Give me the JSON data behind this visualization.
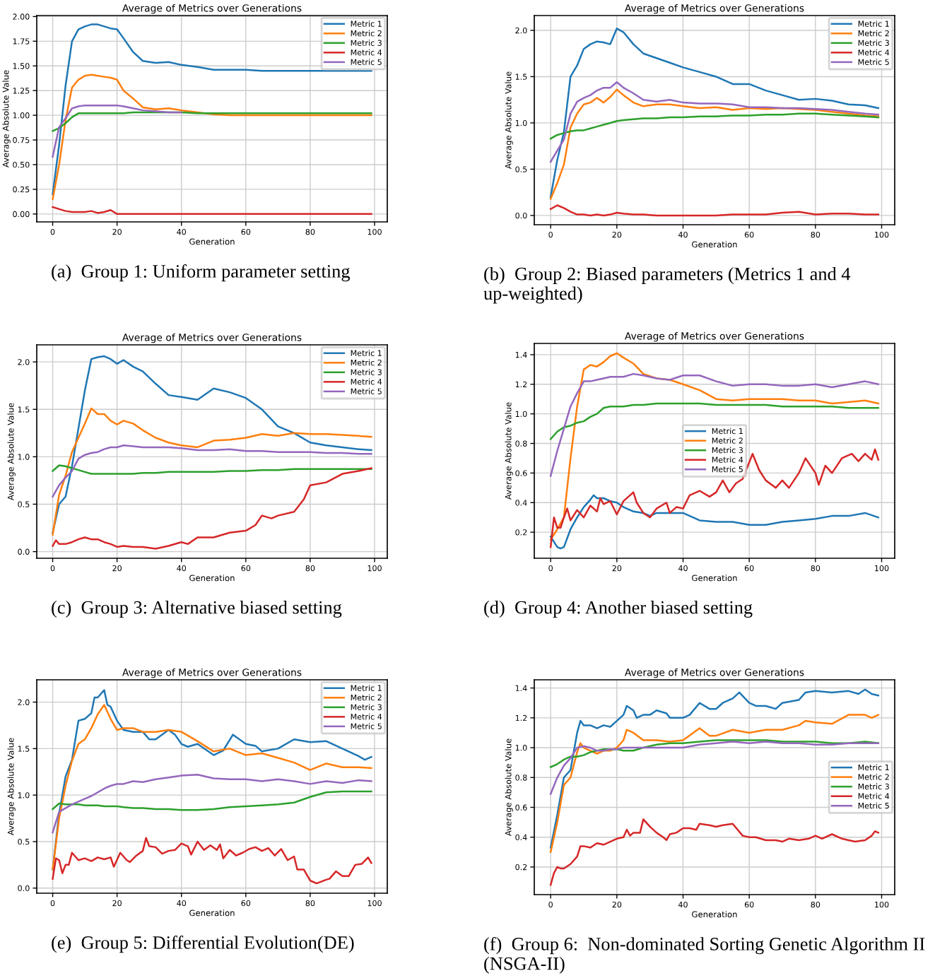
{
  "chart_data": [
    {
      "type": "line",
      "title": "Average of Metrics over Generations",
      "xlabel": "Generation",
      "ylabel": "Average Absolute Value",
      "annotations": [
        "(a)  Group 1: Uniform parameter setting"
      ],
      "legend": "top right",
      "grid": true,
      "x": [
        0,
        2,
        4,
        6,
        8,
        10,
        12,
        14,
        16,
        18,
        20,
        22,
        25,
        28,
        32,
        36,
        40,
        45,
        50,
        55,
        60,
        65,
        70,
        75,
        80,
        85,
        90,
        95,
        99
      ],
      "xlim": [
        -4.95,
        103.95
      ],
      "xticks": [
        0,
        20,
        40,
        60,
        80,
        100
      ],
      "ylim": [
        -0.08,
        2.01
      ],
      "yticks": [
        {
          "value": 0,
          "label": "0.00"
        },
        {
          "value": 0.25,
          "label": "0.25"
        },
        {
          "value": 0.5,
          "label": "0.50"
        },
        {
          "value": 0.75,
          "label": "0.75"
        },
        {
          "value": 1,
          "label": "1.00"
        },
        {
          "value": 1.25,
          "label": "1.25"
        },
        {
          "value": 1.5,
          "label": "1.50"
        },
        {
          "value": 1.75,
          "label": "1.75"
        },
        {
          "value": 2,
          "label": "2.00"
        }
      ],
      "series": [
        {
          "name": "Metric 1",
          "color": "#1f77b4",
          "values": [
            0.2,
            0.7,
            1.3,
            1.75,
            1.87,
            1.9,
            1.92,
            1.92,
            1.9,
            1.88,
            1.87,
            1.78,
            1.64,
            1.55,
            1.53,
            1.54,
            1.51,
            1.49,
            1.46,
            1.46,
            1.46,
            1.45,
            1.45,
            1.45,
            1.45,
            1.45,
            1.45,
            1.45,
            1.45
          ]
        },
        {
          "name": "Metric 2",
          "color": "#ff7f0e",
          "values": [
            0.15,
            0.5,
            0.95,
            1.28,
            1.36,
            1.4,
            1.41,
            1.4,
            1.39,
            1.38,
            1.36,
            1.25,
            1.17,
            1.08,
            1.06,
            1.07,
            1.05,
            1.03,
            1.01,
            1.0,
            1.0,
            1.0,
            1.0,
            1.0,
            1.0,
            1.0,
            1.0,
            1.0,
            1.0
          ]
        },
        {
          "name": "Metric 3",
          "color": "#2ca02c",
          "values": [
            0.84,
            0.87,
            0.92,
            0.98,
            1.02,
            1.02,
            1.02,
            1.02,
            1.02,
            1.02,
            1.02,
            1.02,
            1.03,
            1.03,
            1.03,
            1.03,
            1.03,
            1.02,
            1.02,
            1.02,
            1.02,
            1.02,
            1.02,
            1.02,
            1.02,
            1.02,
            1.02,
            1.02,
            1.02
          ]
        },
        {
          "name": "Metric 4",
          "color": "#d62728",
          "values": [
            0.07,
            0.05,
            0.03,
            0.02,
            0.02,
            0.02,
            0.03,
            0.01,
            0.02,
            0.04,
            0,
            0,
            0,
            0,
            0,
            0,
            0,
            0,
            0,
            0,
            0,
            0,
            0,
            0,
            0,
            0,
            0,
            0,
            0
          ]
        },
        {
          "name": "Metric 5",
          "color": "#9467bd",
          "values": [
            0.58,
            0.88,
            0.97,
            1.07,
            1.09,
            1.1,
            1.1,
            1.1,
            1.1,
            1.1,
            1.1,
            1.09,
            1.07,
            1.05,
            1.04,
            1.03,
            1.03,
            null,
            null,
            null,
            null,
            null,
            null,
            null,
            null,
            null,
            null,
            null,
            null
          ]
        }
      ]
    },
    {
      "type": "line",
      "title": "Average of Metrics over Generations",
      "xlabel": "Generation",
      "ylabel": "Average Absolute Value",
      "annotations": [
        "(b)  Group 2: Biased parameters (Metrics 1 and 4 up-weighted)"
      ],
      "legend": "top right",
      "grid": true,
      "x": [
        0,
        2,
        4,
        6,
        8,
        10,
        12,
        14,
        16,
        18,
        20,
        22,
        25,
        28,
        32,
        36,
        40,
        45,
        50,
        55,
        60,
        65,
        70,
        75,
        80,
        85,
        90,
        95,
        99
      ],
      "xlim": [
        -4.95,
        103.95
      ],
      "xticks": [
        0,
        20,
        40,
        60,
        80,
        100
      ],
      "ylim": [
        -0.1,
        2.16
      ],
      "yticks": [
        {
          "value": 0,
          "label": "0.0"
        },
        {
          "value": 0.5,
          "label": "0.5"
        },
        {
          "value": 1,
          "label": "1.0"
        },
        {
          "value": 1.5,
          "label": "1.5"
        },
        {
          "value": 2,
          "label": "2.0"
        }
      ],
      "series": [
        {
          "name": "Metric 1",
          "color": "#1f77b4",
          "values": [
            0.2,
            0.6,
            0.9,
            1.5,
            1.62,
            1.8,
            1.85,
            1.88,
            1.87,
            1.85,
            2.02,
            1.98,
            1.85,
            1.75,
            1.7,
            1.65,
            1.6,
            1.55,
            1.5,
            1.42,
            1.42,
            1.35,
            1.3,
            1.25,
            1.26,
            1.24,
            1.2,
            1.19,
            1.16
          ]
        },
        {
          "name": "Metric 2",
          "color": "#ff7f0e",
          "values": [
            0.18,
            0.35,
            0.55,
            0.95,
            1.1,
            1.2,
            1.22,
            1.27,
            1.22,
            1.28,
            1.36,
            1.3,
            1.22,
            1.18,
            1.2,
            1.2,
            1.18,
            1.16,
            1.17,
            1.14,
            1.16,
            1.15,
            1.16,
            1.15,
            1.14,
            1.12,
            1.1,
            1.08,
            1.07
          ]
        },
        {
          "name": "Metric 3",
          "color": "#2ca02c",
          "values": [
            0.83,
            0.87,
            0.89,
            0.91,
            0.92,
            0.92,
            0.94,
            0.96,
            0.98,
            1.0,
            1.02,
            1.03,
            1.04,
            1.05,
            1.05,
            1.06,
            1.06,
            1.07,
            1.07,
            1.08,
            1.08,
            1.09,
            1.09,
            1.1,
            1.1,
            1.09,
            1.08,
            1.07,
            1.06
          ]
        },
        {
          "name": "Metric 4",
          "color": "#d62728",
          "values": [
            0.07,
            0.11,
            0.08,
            0.04,
            0.01,
            0.01,
            0.0,
            0.01,
            0.0,
            0.01,
            0.03,
            0.02,
            0.01,
            0.01,
            0.0,
            0.0,
            0.0,
            0.0,
            0.0,
            0.01,
            0.01,
            0.01,
            0.03,
            0.04,
            0.01,
            0.02,
            0.02,
            0.01,
            0.01
          ]
        },
        {
          "name": "Metric 5",
          "color": "#9467bd",
          "values": [
            0.58,
            0.7,
            0.82,
            1.1,
            1.23,
            1.27,
            1.3,
            1.35,
            1.38,
            1.38,
            1.44,
            1.38,
            1.32,
            1.25,
            1.23,
            1.25,
            1.22,
            1.21,
            1.21,
            1.2,
            1.17,
            1.17,
            1.16,
            1.16,
            1.15,
            1.14,
            1.12,
            1.1,
            1.09
          ]
        }
      ]
    },
    {
      "type": "line",
      "title": "Average of Metrics over Generations",
      "xlabel": "Generation",
      "ylabel": "Average Absolute Value",
      "annotations": [
        "(c)  Group 3: Alternative biased setting"
      ],
      "legend": "top right",
      "grid": true,
      "x": [
        0,
        2,
        4,
        6,
        8,
        10,
        12,
        14,
        16,
        18,
        20,
        22,
        25,
        28,
        32,
        36,
        40,
        45,
        50,
        55,
        60,
        65,
        70,
        75,
        80,
        85,
        90,
        95,
        99
      ],
      "xlim": [
        -4.95,
        103.95
      ],
      "xticks": [
        0,
        20,
        40,
        60,
        80,
        100
      ],
      "ylim": [
        -0.07,
        2.18
      ],
      "yticks": [
        {
          "value": 0,
          "label": "0.0"
        },
        {
          "value": 0.5,
          "label": "0.5"
        },
        {
          "value": 1,
          "label": "1.0"
        },
        {
          "value": 1.5,
          "label": "1.5"
        },
        {
          "value": 2,
          "label": "2.0"
        }
      ],
      "series": [
        {
          "name": "Metric 1",
          "color": "#1f77b4",
          "values": [
            0.2,
            0.5,
            0.58,
            0.9,
            1.3,
            1.7,
            2.03,
            2.05,
            2.06,
            2.03,
            1.98,
            2.02,
            1.95,
            1.9,
            1.77,
            1.65,
            1.63,
            1.6,
            1.72,
            1.68,
            1.62,
            1.5,
            1.32,
            1.25,
            1.15,
            1.12,
            1.1,
            1.08,
            1.07
          ]
        },
        {
          "name": "Metric 2",
          "color": "#ff7f0e",
          "values": [
            0.18,
            0.6,
            0.8,
            1.05,
            1.2,
            1.35,
            1.51,
            1.45,
            1.45,
            1.38,
            1.34,
            1.38,
            1.35,
            1.28,
            1.2,
            1.15,
            1.12,
            1.1,
            1.17,
            1.18,
            1.2,
            1.24,
            1.22,
            1.25,
            1.24,
            1.24,
            1.23,
            1.22,
            1.21
          ]
        },
        {
          "name": "Metric 3",
          "color": "#2ca02c",
          "values": [
            0.85,
            0.91,
            0.9,
            0.88,
            0.86,
            0.84,
            0.82,
            0.82,
            0.82,
            0.82,
            0.82,
            0.82,
            0.82,
            0.83,
            0.83,
            0.84,
            0.84,
            0.84,
            0.84,
            0.85,
            0.85,
            0.86,
            0.86,
            0.87,
            0.87,
            0.87,
            0.87,
            0.87,
            0.87
          ]
        },
        {
          "name": "Metric 4",
          "color": "#d62728",
          "x": [
            0,
            1,
            2,
            4,
            6,
            8,
            10,
            12,
            14,
            16,
            18,
            20,
            22,
            25,
            28,
            32,
            36,
            40,
            42,
            45,
            50,
            55,
            60,
            63,
            65,
            68,
            70,
            75,
            78,
            80,
            85,
            90,
            95,
            99
          ],
          "values": [
            0.06,
            0.12,
            0.08,
            0.08,
            0.1,
            0.13,
            0.15,
            0.13,
            0.13,
            0.1,
            0.08,
            0.05,
            0.06,
            0.05,
            0.05,
            0.03,
            0.06,
            0.1,
            0.08,
            0.15,
            0.15,
            0.2,
            0.22,
            0.28,
            0.38,
            0.35,
            0.38,
            0.42,
            0.55,
            0.7,
            0.73,
            0.82,
            0.85,
            0.88
          ]
        },
        {
          "name": "Metric 5",
          "color": "#9467bd",
          "values": [
            0.58,
            0.7,
            0.78,
            0.85,
            0.98,
            1.02,
            1.04,
            1.05,
            1.08,
            1.1,
            1.1,
            1.12,
            1.11,
            1.1,
            1.1,
            1.1,
            1.09,
            1.07,
            1.07,
            1.08,
            1.06,
            1.06,
            1.05,
            1.05,
            1.05,
            1.04,
            1.04,
            1.03,
            1.03
          ]
        }
      ]
    },
    {
      "type": "line",
      "title": "Average of Metrics over Generations",
      "xlabel": "Generation",
      "ylabel": "Average Absolute Value",
      "annotations": [
        "(d)  Group 4: Another biased setting"
      ],
      "legend": "center",
      "grid": true,
      "x": [
        0,
        2,
        4,
        6,
        8,
        10,
        12,
        14,
        16,
        18,
        20,
        22,
        25,
        28,
        32,
        36,
        40,
        45,
        50,
        55,
        60,
        65,
        70,
        75,
        80,
        85,
        90,
        95,
        99
      ],
      "xlim": [
        -4.95,
        103.95
      ],
      "xticks": [
        0,
        20,
        40,
        60,
        80,
        100
      ],
      "ylim": [
        0.024,
        1.476
      ],
      "yticks": [
        0.2,
        0.4,
        0.6,
        0.8,
        {
          "value": 1,
          "label": "1.0"
        },
        1.2,
        1.4
      ],
      "series": [
        {
          "name": "Metric 1",
          "color": "#1f77b4",
          "x": [
            0,
            2,
            3,
            4,
            6,
            8,
            10,
            12,
            13,
            14,
            16,
            18,
            20,
            22,
            25,
            28,
            30,
            32,
            36,
            40,
            45,
            50,
            55,
            60,
            65,
            70,
            75,
            80,
            85,
            90,
            95,
            99
          ],
          "values": [
            0.17,
            0.1,
            0.09,
            0.1,
            0.22,
            0.3,
            0.37,
            0.42,
            0.45,
            0.43,
            0.43,
            0.41,
            0.4,
            0.37,
            0.34,
            0.33,
            0.31,
            0.33,
            0.33,
            0.33,
            0.28,
            0.27,
            0.27,
            0.25,
            0.25,
            0.27,
            0.28,
            0.29,
            0.31,
            0.31,
            0.33,
            0.3
          ]
        },
        {
          "name": "Metric 2",
          "color": "#ff7f0e",
          "values": [
            0.15,
            0.22,
            0.3,
            0.7,
            1.05,
            1.3,
            1.33,
            1.32,
            1.35,
            1.39,
            1.41,
            1.38,
            1.34,
            1.27,
            1.24,
            1.23,
            1.2,
            1.16,
            1.1,
            1.09,
            1.1,
            1.1,
            1.1,
            1.09,
            1.09,
            1.07,
            1.08,
            1.09,
            1.07
          ]
        },
        {
          "name": "Metric 3",
          "color": "#2ca02c",
          "values": [
            0.83,
            0.88,
            0.91,
            0.92,
            0.94,
            0.95,
            0.98,
            1.0,
            1.04,
            1.05,
            1.05,
            1.05,
            1.06,
            1.06,
            1.07,
            1.07,
            1.07,
            1.07,
            1.06,
            1.06,
            1.06,
            1.06,
            1.05,
            1.05,
            1.05,
            1.05,
            1.04,
            1.04,
            1.04
          ]
        },
        {
          "name": "Metric 4",
          "color": "#d62728",
          "x": [
            0,
            1,
            2,
            3,
            4,
            5,
            6,
            8,
            10,
            12,
            14,
            15,
            16,
            18,
            20,
            22,
            25,
            26,
            28,
            30,
            32,
            35,
            36,
            38,
            40,
            42,
            45,
            48,
            50,
            52,
            54,
            56,
            58,
            61,
            63,
            65,
            68,
            70,
            72,
            75,
            77,
            80,
            81,
            83,
            85,
            88,
            91,
            93,
            95,
            97,
            98,
            99
          ],
          "values": [
            0.1,
            0.3,
            0.23,
            0.23,
            0.3,
            0.36,
            0.28,
            0.35,
            0.3,
            0.38,
            0.34,
            0.43,
            0.39,
            0.41,
            0.32,
            0.41,
            0.47,
            0.4,
            0.33,
            0.3,
            0.36,
            0.4,
            0.33,
            0.37,
            0.36,
            0.45,
            0.48,
            0.44,
            0.47,
            0.55,
            0.47,
            0.53,
            0.56,
            0.73,
            0.62,
            0.55,
            0.5,
            0.55,
            0.5,
            0.6,
            0.7,
            0.6,
            0.52,
            0.65,
            0.6,
            0.7,
            0.73,
            0.68,
            0.73,
            0.69,
            0.76,
            0.69
          ]
        },
        {
          "name": "Metric 5",
          "color": "#9467bd",
          "values": [
            0.58,
            0.75,
            0.9,
            1.05,
            1.14,
            1.22,
            1.22,
            1.23,
            1.24,
            1.25,
            1.25,
            1.25,
            1.27,
            1.26,
            1.24,
            1.23,
            1.26,
            1.26,
            1.22,
            1.19,
            1.2,
            1.2,
            1.19,
            1.19,
            1.2,
            1.18,
            1.2,
            1.22,
            1.2
          ]
        }
      ]
    },
    {
      "type": "line",
      "title": "Average of Metrics over Generations",
      "xlabel": "Generation",
      "ylabel": "Average Absolute Value",
      "annotations": [
        "(e)  Group 5: Differential Evolution(DE)"
      ],
      "legend": "top right",
      "grid": true,
      "x": [
        0,
        2,
        4,
        6,
        8,
        10,
        12,
        14,
        16,
        18,
        20,
        22,
        25,
        28,
        32,
        36,
        40,
        45,
        50,
        55,
        60,
        65,
        70,
        75,
        80,
        85,
        90,
        95,
        99
      ],
      "xlim": [
        -4.95,
        103.95
      ],
      "xticks": [
        0,
        20,
        40,
        60,
        80,
        100
      ],
      "ylim": [
        -0.055,
        2.24
      ],
      "yticks": [
        {
          "value": 0,
          "label": "0.0"
        },
        {
          "value": 0.5,
          "label": "0.5"
        },
        {
          "value": 1,
          "label": "1.0"
        },
        {
          "value": 1.5,
          "label": "1.5"
        },
        {
          "value": 2,
          "label": "2.0"
        }
      ],
      "series": [
        {
          "name": "Metric 1",
          "color": "#1f77b4",
          "x": [
            0,
            2,
            4,
            6,
            8,
            10,
            12,
            13,
            14,
            16,
            17,
            18,
            20,
            22,
            25,
            28,
            30,
            32,
            36,
            38,
            40,
            42,
            45,
            50,
            53,
            56,
            60,
            63,
            65,
            70,
            75,
            80,
            85,
            90,
            95,
            97,
            99
          ],
          "values": [
            0.2,
            0.8,
            1.2,
            1.38,
            1.8,
            1.82,
            1.88,
            2.05,
            2.05,
            2.13,
            1.97,
            1.95,
            1.8,
            1.7,
            1.68,
            1.68,
            1.6,
            1.6,
            1.7,
            1.65,
            1.55,
            1.52,
            1.55,
            1.43,
            1.48,
            1.65,
            1.55,
            1.53,
            1.47,
            1.5,
            1.6,
            1.57,
            1.58,
            1.5,
            1.42,
            1.38,
            1.41
          ]
        },
        {
          "name": "Metric 2",
          "color": "#ff7f0e",
          "values": [
            0.2,
            0.75,
            1.1,
            1.37,
            1.55,
            1.6,
            1.72,
            1.87,
            1.97,
            1.82,
            1.7,
            1.72,
            1.72,
            1.68,
            1.68,
            1.7,
            1.68,
            1.58,
            1.47,
            1.5,
            1.43,
            1.45,
            1.4,
            1.35,
            1.27,
            1.34,
            1.3,
            1.3,
            1.29
          ]
        },
        {
          "name": "Metric 3",
          "color": "#2ca02c",
          "values": [
            0.85,
            0.91,
            0.9,
            0.9,
            0.9,
            0.89,
            0.89,
            0.89,
            0.88,
            0.88,
            0.88,
            0.87,
            0.86,
            0.86,
            0.85,
            0.85,
            0.84,
            0.84,
            0.85,
            0.87,
            0.88,
            0.89,
            0.9,
            0.92,
            0.98,
            1.03,
            1.04,
            1.04,
            1.04
          ]
        },
        {
          "name": "Metric 4",
          "color": "#d62728",
          "x": [
            0,
            1,
            2,
            3,
            4,
            5,
            6,
            8,
            10,
            12,
            14,
            16,
            18,
            19,
            21,
            23,
            24,
            26,
            28,
            29,
            30,
            32,
            34,
            36,
            38,
            40,
            42,
            43,
            45,
            47,
            49,
            51,
            52,
            53,
            55,
            57,
            59,
            61,
            63,
            65,
            67,
            69,
            71,
            73,
            75,
            76,
            78,
            80,
            82,
            85,
            86,
            88,
            90,
            92,
            94,
            96,
            98,
            99
          ],
          "values": [
            0.1,
            0.32,
            0.3,
            0.16,
            0.25,
            0.25,
            0.38,
            0.3,
            0.32,
            0.29,
            0.33,
            0.31,
            0.33,
            0.23,
            0.38,
            0.3,
            0.28,
            0.35,
            0.4,
            0.54,
            0.45,
            0.44,
            0.37,
            0.4,
            0.41,
            0.48,
            0.45,
            0.36,
            0.5,
            0.41,
            0.46,
            0.41,
            0.47,
            0.32,
            0.41,
            0.35,
            0.38,
            0.42,
            0.44,
            0.4,
            0.43,
            0.35,
            0.42,
            0.3,
            0.34,
            0.2,
            0.2,
            0.08,
            0.05,
            0.09,
            0.1,
            0.18,
            0.13,
            0.13,
            0.25,
            0.26,
            0.33,
            0.27
          ]
        },
        {
          "name": "Metric 5",
          "color": "#9467bd",
          "values": [
            0.6,
            0.82,
            0.86,
            0.9,
            0.93,
            0.96,
            0.99,
            1.03,
            1.07,
            1.1,
            1.12,
            1.12,
            1.15,
            1.14,
            1.17,
            1.19,
            1.21,
            1.22,
            1.18,
            1.17,
            1.17,
            1.15,
            1.17,
            1.15,
            1.12,
            1.15,
            1.13,
            1.16,
            1.15
          ]
        }
      ]
    },
    {
      "type": "line",
      "title": "Average of Metrics over Generations",
      "xlabel": "Generation",
      "ylabel": "Average Absolute Value",
      "annotations": [
        "(f)  Group 6:  Non-dominated Sorting Genetic Algorithm II (NSGA-II)"
      ],
      "legend": "center right",
      "grid": true,
      "x": [
        0,
        2,
        4,
        6,
        8,
        10,
        12,
        14,
        16,
        18,
        20,
        22,
        25,
        28,
        32,
        36,
        40,
        45,
        50,
        55,
        60,
        65,
        70,
        75,
        80,
        85,
        90,
        95,
        99
      ],
      "xlim": [
        -4.95,
        103.95
      ],
      "xticks": [
        0,
        20,
        40,
        60,
        80,
        100
      ],
      "ylim": [
        0.015,
        1.455
      ],
      "yticks": [
        0.2,
        0.4,
        0.6,
        0.8,
        {
          "value": 1,
          "label": "1.0"
        },
        1.2,
        1.4
      ],
      "series": [
        {
          "name": "Metric 1",
          "color": "#1f77b4",
          "x": [
            0,
            2,
            4,
            6,
            8,
            9,
            10,
            12,
            14,
            16,
            18,
            20,
            22,
            23,
            25,
            26,
            28,
            30,
            32,
            35,
            36,
            40,
            42,
            45,
            48,
            50,
            52,
            55,
            57,
            60,
            62,
            65,
            68,
            70,
            75,
            77,
            80,
            85,
            90,
            93,
            95,
            97,
            99
          ],
          "values": [
            0.33,
            0.55,
            0.8,
            0.85,
            1.1,
            1.18,
            1.15,
            1.15,
            1.13,
            1.15,
            1.14,
            1.18,
            1.22,
            1.28,
            1.25,
            1.2,
            1.22,
            1.22,
            1.25,
            1.23,
            1.2,
            1.2,
            1.22,
            1.3,
            1.26,
            1.26,
            1.3,
            1.33,
            1.37,
            1.3,
            1.28,
            1.28,
            1.26,
            1.3,
            1.32,
            1.37,
            1.38,
            1.37,
            1.38,
            1.36,
            1.39,
            1.36,
            1.35
          ]
        },
        {
          "name": "Metric 2",
          "color": "#ff7f0e",
          "x": [
            0,
            2,
            4,
            6,
            8,
            9,
            10,
            12,
            14,
            16,
            18,
            20,
            22,
            23,
            25,
            28,
            32,
            36,
            40,
            45,
            48,
            50,
            55,
            60,
            65,
            70,
            75,
            77,
            80,
            85,
            90,
            95,
            97,
            99
          ],
          "values": [
            0.3,
            0.5,
            0.75,
            0.8,
            0.97,
            1.03,
            1.0,
            0.98,
            0.96,
            0.98,
            0.98,
            1.0,
            1.05,
            1.12,
            1.1,
            1.05,
            1.05,
            1.04,
            1.05,
            1.13,
            1.08,
            1.08,
            1.12,
            1.1,
            1.12,
            1.12,
            1.15,
            1.18,
            1.17,
            1.16,
            1.22,
            1.22,
            1.2,
            1.22
          ]
        },
        {
          "name": "Metric 3",
          "color": "#2ca02c",
          "values": [
            0.87,
            0.89,
            0.92,
            0.94,
            0.94,
            0.95,
            0.97,
            0.98,
            0.99,
            0.99,
            0.99,
            0.98,
            0.98,
            1.0,
            1.02,
            1.03,
            1.03,
            1.04,
            1.05,
            1.05,
            1.05,
            1.05,
            1.04,
            1.04,
            1.04,
            1.03,
            1.03,
            1.04,
            1.03
          ]
        },
        {
          "name": "Metric 4",
          "color": "#d62728",
          "x": [
            0,
            1,
            2,
            3,
            4,
            6,
            8,
            9,
            10,
            12,
            14,
            16,
            18,
            20,
            22,
            23,
            24,
            25,
            27,
            28,
            30,
            32,
            34,
            35,
            36,
            38,
            40,
            42,
            44,
            45,
            48,
            50,
            52,
            55,
            58,
            60,
            62,
            65,
            68,
            70,
            72,
            75,
            78,
            80,
            82,
            85,
            88,
            90,
            92,
            95,
            97,
            98,
            99
          ],
          "values": [
            0.08,
            0.16,
            0.2,
            0.19,
            0.19,
            0.22,
            0.27,
            0.34,
            0.34,
            0.33,
            0.36,
            0.35,
            0.37,
            0.39,
            0.4,
            0.45,
            0.41,
            0.43,
            0.43,
            0.52,
            0.47,
            0.43,
            0.4,
            0.38,
            0.42,
            0.43,
            0.46,
            0.46,
            0.45,
            0.49,
            0.48,
            0.47,
            0.48,
            0.49,
            0.41,
            0.4,
            0.4,
            0.38,
            0.38,
            0.37,
            0.39,
            0.38,
            0.39,
            0.41,
            0.39,
            0.42,
            0.39,
            0.38,
            0.37,
            0.38,
            0.41,
            0.44,
            0.43
          ]
        },
        {
          "name": "Metric 5",
          "color": "#9467bd",
          "values": [
            0.69,
            0.8,
            0.88,
            0.93,
            1.0,
            1.01,
            1.0,
            0.98,
            0.98,
            0.99,
            0.99,
            1.0,
            1.0,
            1.0,
            1.0,
            1.0,
            1.0,
            1.02,
            1.03,
            1.04,
            1.03,
            1.04,
            1.03,
            1.03,
            1.02,
            1.02,
            1.03,
            1.03,
            1.03
          ]
        }
      ]
    }
  ]
}
